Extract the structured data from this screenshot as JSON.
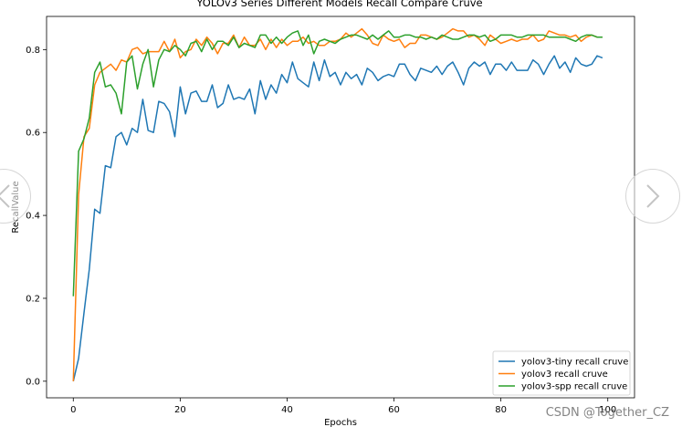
{
  "chart_data": {
    "type": "line",
    "title": "YOLOv3 Series Different Models Recall Compare Cruve",
    "xlabel": "Epochs",
    "ylabel": "RecallValue",
    "xlim": [
      -5,
      105
    ],
    "ylim": [
      -0.04,
      0.88
    ],
    "xticks": [
      0,
      20,
      40,
      60,
      80,
      100
    ],
    "yticks": [
      0.0,
      0.2,
      0.4,
      0.6,
      0.8
    ],
    "xtick_labels": [
      "0",
      "20",
      "40",
      "60",
      "80",
      "100"
    ],
    "ytick_labels": [
      "0.0",
      "0.2",
      "0.4",
      "0.6",
      "0.8"
    ],
    "grid": false,
    "legend_position": "bottom-right",
    "x": [
      0,
      1,
      2,
      3,
      4,
      5,
      6,
      7,
      8,
      9,
      10,
      11,
      12,
      13,
      14,
      15,
      16,
      17,
      18,
      19,
      20,
      21,
      22,
      23,
      24,
      25,
      26,
      27,
      28,
      29,
      30,
      31,
      32,
      33,
      34,
      35,
      36,
      37,
      38,
      39,
      40,
      41,
      42,
      43,
      44,
      45,
      46,
      47,
      48,
      49,
      50,
      51,
      52,
      53,
      54,
      55,
      56,
      57,
      58,
      59,
      60,
      61,
      62,
      63,
      64,
      65,
      66,
      67,
      68,
      69,
      70,
      71,
      72,
      73,
      74,
      75,
      76,
      77,
      78,
      79,
      80,
      81,
      82,
      83,
      84,
      85,
      86,
      87,
      88,
      89,
      90,
      91,
      92,
      93,
      94,
      95,
      96,
      97,
      98,
      99
    ],
    "series": [
      {
        "name": "yolov3-tiny recall cruve",
        "color": "#1f77b4",
        "values": [
          0.0,
          0.055,
          0.165,
          0.27,
          0.415,
          0.405,
          0.52,
          0.515,
          0.59,
          0.6,
          0.57,
          0.61,
          0.6,
          0.68,
          0.605,
          0.6,
          0.675,
          0.67,
          0.65,
          0.59,
          0.71,
          0.645,
          0.695,
          0.7,
          0.675,
          0.675,
          0.715,
          0.66,
          0.67,
          0.715,
          0.68,
          0.685,
          0.68,
          0.705,
          0.645,
          0.725,
          0.68,
          0.715,
          0.695,
          0.74,
          0.72,
          0.77,
          0.73,
          0.72,
          0.71,
          0.77,
          0.725,
          0.775,
          0.735,
          0.745,
          0.715,
          0.745,
          0.73,
          0.74,
          0.715,
          0.755,
          0.745,
          0.725,
          0.735,
          0.74,
          0.735,
          0.765,
          0.765,
          0.74,
          0.725,
          0.755,
          0.75,
          0.745,
          0.76,
          0.74,
          0.76,
          0.77,
          0.745,
          0.715,
          0.755,
          0.77,
          0.76,
          0.77,
          0.74,
          0.765,
          0.765,
          0.75,
          0.77,
          0.75,
          0.75,
          0.75,
          0.775,
          0.765,
          0.74,
          0.765,
          0.785,
          0.755,
          0.77,
          0.745,
          0.78,
          0.765,
          0.76,
          0.765,
          0.785,
          0.78
        ]
      },
      {
        "name": "yolov3 recall cruve",
        "color": "#ff7f0e",
        "values": [
          0.0,
          0.45,
          0.59,
          0.61,
          0.715,
          0.745,
          0.755,
          0.765,
          0.75,
          0.775,
          0.77,
          0.8,
          0.805,
          0.79,
          0.795,
          0.795,
          0.795,
          0.82,
          0.795,
          0.825,
          0.78,
          0.795,
          0.8,
          0.825,
          0.81,
          0.83,
          0.815,
          0.79,
          0.815,
          0.815,
          0.835,
          0.805,
          0.83,
          0.81,
          0.81,
          0.825,
          0.8,
          0.825,
          0.805,
          0.825,
          0.81,
          0.82,
          0.82,
          0.83,
          0.815,
          0.82,
          0.81,
          0.81,
          0.82,
          0.82,
          0.825,
          0.84,
          0.83,
          0.84,
          0.85,
          0.835,
          0.815,
          0.81,
          0.835,
          0.825,
          0.82,
          0.825,
          0.805,
          0.815,
          0.815,
          0.835,
          0.835,
          0.83,
          0.825,
          0.83,
          0.84,
          0.85,
          0.845,
          0.845,
          0.83,
          0.835,
          0.825,
          0.81,
          0.835,
          0.825,
          0.815,
          0.82,
          0.825,
          0.82,
          0.825,
          0.825,
          0.835,
          0.82,
          0.825,
          0.845,
          0.84,
          0.835,
          0.835,
          0.83,
          0.835,
          0.82,
          0.83,
          0.835,
          0.83,
          0.83
        ]
      },
      {
        "name": "yolov3-spp recall cruve",
        "color": "#2ca02c",
        "values": [
          0.205,
          0.555,
          0.585,
          0.635,
          0.745,
          0.77,
          0.71,
          0.715,
          0.695,
          0.645,
          0.77,
          0.785,
          0.705,
          0.765,
          0.8,
          0.71,
          0.775,
          0.8,
          0.795,
          0.81,
          0.8,
          0.785,
          0.815,
          0.82,
          0.795,
          0.825,
          0.8,
          0.82,
          0.82,
          0.81,
          0.83,
          0.805,
          0.815,
          0.81,
          0.805,
          0.835,
          0.835,
          0.815,
          0.83,
          0.815,
          0.83,
          0.84,
          0.845,
          0.81,
          0.835,
          0.79,
          0.82,
          0.825,
          0.82,
          0.815,
          0.825,
          0.83,
          0.835,
          0.835,
          0.83,
          0.825,
          0.835,
          0.825,
          0.835,
          0.845,
          0.83,
          0.83,
          0.835,
          0.835,
          0.83,
          0.83,
          0.825,
          0.83,
          0.825,
          0.835,
          0.83,
          0.825,
          0.825,
          0.83,
          0.835,
          0.835,
          0.83,
          0.835,
          0.82,
          0.825,
          0.835,
          0.835,
          0.835,
          0.83,
          0.83,
          0.835,
          0.835,
          0.835,
          0.835,
          0.83,
          0.83,
          0.83,
          0.83,
          0.825,
          0.82,
          0.83,
          0.835,
          0.835,
          0.83,
          0.83
        ]
      }
    ]
  },
  "overlay": {
    "prev_icon": "chevron-left-icon",
    "next_icon": "chevron-right-icon",
    "watermark": "CSDN @Together_CZ"
  }
}
